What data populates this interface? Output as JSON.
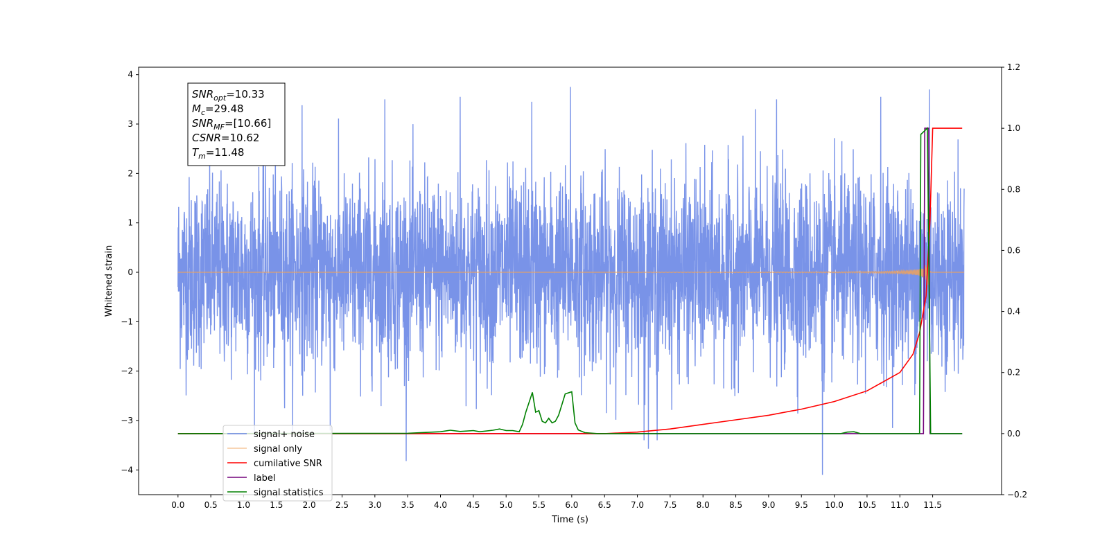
{
  "chart_data": {
    "type": "line",
    "xlabel": "Time (s)",
    "ylabel": "Whitened strain",
    "xlim": [
      -0.6,
      12.55
    ],
    "ylim": [
      -4.5,
      4.15
    ],
    "y2lim": [
      -0.2,
      1.2
    ],
    "x_ticks": [
      "0.0",
      "0.5",
      "1.0",
      "1.5",
      "2.0",
      "2.5",
      "3.0",
      "3.5",
      "4.0",
      "4.5",
      "5.0",
      "5.5",
      "6.0",
      "6.5",
      "7.0",
      "7.5",
      "8.0",
      "8.5",
      "9.0",
      "9.5",
      "10.0",
      "10.5",
      "11.0",
      "11.5"
    ],
    "y_ticks": [
      -4,
      -3,
      -2,
      -1,
      0,
      1,
      2,
      3,
      4
    ],
    "y2_ticks": [
      -0.2,
      0.0,
      0.2,
      0.4,
      0.6,
      0.8,
      1.0,
      1.2
    ],
    "grid": false,
    "legend_position": "lower-left",
    "annotation": {
      "lines": [
        {
          "name": "SNR",
          "sub": "opt",
          "value": "=10.33"
        },
        {
          "name": "M",
          "sub": "c",
          "value": "=29.48"
        },
        {
          "name": "SNR",
          "sub": "MF",
          "value": "=[10.66]"
        },
        {
          "name": "CSNR",
          "sub": "",
          "value": "=10.62"
        },
        {
          "name": "T",
          "sub": "m",
          "value": "=11.48"
        }
      ]
    },
    "series": [
      {
        "name": "signal+ noise",
        "axis": "left",
        "color": "#6a87e6",
        "description": "whitened noise, amplitude about ±2.5, peaks near ±3.7",
        "spikes_x": [
          1.89,
          3.15,
          4.3,
          5.39,
          5.98,
          8.8,
          9.12,
          10.71,
          11.45,
          7.1,
          7.3,
          9.82,
          2.32
        ],
        "spikes_y": [
          3.38,
          3.5,
          3.55,
          3.45,
          3.75,
          3.3,
          3.5,
          3.55,
          3.7,
          -3.4,
          -3.4,
          -4.1,
          -3.2
        ]
      },
      {
        "name": "signal only",
        "axis": "left",
        "color": "#f0a25a",
        "description": "chirp with amplitude rising from 0 to about 1.0 near t=11.45 s"
      },
      {
        "name": "cumilative SNR",
        "axis": "right",
        "color": "#ff0000",
        "x": [
          0.0,
          6.5,
          7.0,
          7.5,
          8.0,
          8.5,
          9.0,
          9.5,
          10.0,
          10.5,
          11.0,
          11.2,
          11.3,
          11.4,
          11.46,
          11.5,
          11.95
        ],
        "y": [
          0.0,
          0.0,
          0.005,
          0.015,
          0.03,
          0.045,
          0.06,
          0.08,
          0.105,
          0.14,
          0.2,
          0.26,
          0.33,
          0.45,
          0.7,
          1.0,
          1.0
        ]
      },
      {
        "name": "label",
        "axis": "right",
        "color": "#72007a",
        "x": [
          0.0,
          11.36,
          11.38,
          11.44,
          11.46,
          11.5,
          11.95
        ],
        "y": [
          0.0,
          0.0,
          1.0,
          1.0,
          0.0,
          0.0,
          0.0
        ]
      },
      {
        "name": "signal statistics",
        "axis": "right",
        "color": "#008000",
        "x": [
          0.0,
          3.5,
          4.0,
          4.15,
          4.3,
          4.5,
          4.6,
          4.8,
          4.9,
          5.0,
          5.1,
          5.2,
          5.25,
          5.3,
          5.4,
          5.45,
          5.5,
          5.55,
          5.6,
          5.65,
          5.7,
          5.75,
          5.8,
          5.85,
          5.9,
          6.0,
          6.05,
          6.1,
          6.2,
          6.4,
          10.1,
          10.2,
          10.3,
          10.4,
          10.5,
          11.3,
          11.32,
          11.42,
          11.47,
          11.5,
          11.6,
          11.95
        ],
        "y": [
          0.0,
          0.001,
          0.006,
          0.011,
          0.007,
          0.01,
          0.006,
          0.011,
          0.015,
          0.01,
          0.01,
          0.006,
          0.03,
          0.07,
          0.135,
          0.07,
          0.075,
          0.04,
          0.035,
          0.05,
          0.035,
          0.04,
          0.06,
          0.095,
          0.13,
          0.137,
          0.035,
          0.012,
          0.003,
          0.0,
          0.0,
          0.005,
          0.006,
          0.0,
          0.0,
          0.0,
          0.98,
          1.0,
          0.0,
          0.0,
          0.0,
          0.0
        ]
      }
    ],
    "legend": [
      "signal+ noise",
      "signal only",
      "cumilative SNR",
      "label",
      "signal statistics"
    ]
  }
}
